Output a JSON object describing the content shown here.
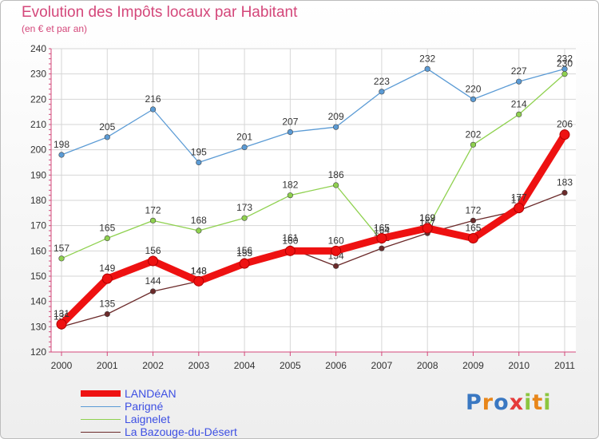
{
  "chart_data": {
    "type": "line",
    "title": "Evolution des Impôts locaux par Habitant",
    "subtitle": "(en € et par an)",
    "categories": [
      "2000",
      "2001",
      "2002",
      "2003",
      "2004",
      "2005",
      "2006",
      "2007",
      "2008",
      "2009",
      "2010",
      "2011"
    ],
    "ylim": [
      120,
      240
    ],
    "yticks": [
      120,
      130,
      140,
      150,
      160,
      170,
      180,
      190,
      200,
      210,
      220,
      230,
      240
    ],
    "grid": true,
    "series": [
      {
        "name": "Parigné",
        "color": "#5b9bd5",
        "values": [
          198,
          205,
          216,
          195,
          201,
          207,
          209,
          223,
          232,
          220,
          227,
          232
        ]
      },
      {
        "name": "Laignelet",
        "color": "#8fd14f",
        "values": [
          157,
          165,
          172,
          168,
          173,
          182,
          186,
          164,
          169,
          202,
          214,
          230
        ]
      },
      {
        "name": "La Bazouge-du-Désert",
        "color": "#6b2a2a",
        "values": [
          130,
          135,
          144,
          148,
          156,
          161,
          154,
          161,
          167,
          172,
          176,
          183
        ]
      },
      {
        "name": "LANDéAN",
        "color": "#ee1111",
        "values": [
          131,
          149,
          156,
          148,
          155,
          160,
          160,
          165,
          169,
          165,
          177,
          206
        ]
      }
    ]
  },
  "legend": [
    {
      "label": "LANDéAN",
      "color": "#ee1111"
    },
    {
      "label": "Parigné",
      "color": "#5b9bd5"
    },
    {
      "label": "Laignelet",
      "color": "#8fd14f"
    },
    {
      "label": "La Bazouge-du-Désert",
      "color": "#6b2a2a"
    }
  ],
  "logo": {
    "text": "Proxiti"
  }
}
